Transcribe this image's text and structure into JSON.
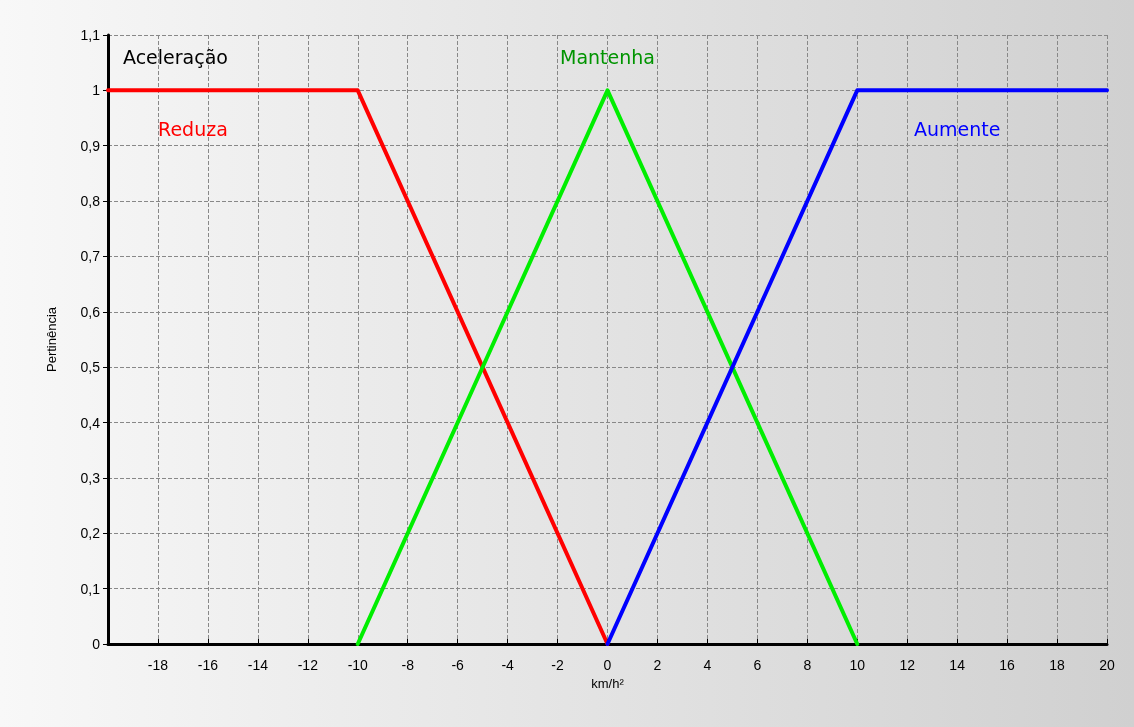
{
  "chart_data": {
    "type": "line",
    "title": "Aceleração",
    "xlabel": "km/h²",
    "ylabel": "Pertinência",
    "series": [
      {
        "name": "Reduza",
        "color": "#ff0000",
        "x": [
          -20,
          -10,
          0
        ],
        "values": [
          1,
          1,
          0
        ]
      },
      {
        "name": "Mantenha",
        "color": "#00ee00",
        "x": [
          -10,
          0,
          10
        ],
        "values": [
          0,
          1,
          0
        ]
      },
      {
        "name": "Aumente",
        "color": "#0000ff",
        "x": [
          0,
          10,
          20
        ],
        "values": [
          0,
          1,
          1
        ]
      }
    ],
    "xlim": [
      -20,
      20
    ],
    "xticks": [
      {
        "value": -20,
        "label": null
      },
      -18,
      -16,
      -14,
      -12,
      -10,
      -8,
      -6,
      -4,
      -2,
      0,
      2,
      4,
      6,
      8,
      10,
      12,
      14,
      16,
      18,
      20
    ],
    "ylim": [
      0,
      1.1
    ],
    "yticks": [
      0,
      {
        "value": 0.1,
        "label": "0,1"
      },
      {
        "value": 0.2,
        "label": "0,2"
      },
      {
        "value": 0.3,
        "label": "0,3"
      },
      {
        "value": 0.4,
        "label": "0,4"
      },
      {
        "value": 0.5,
        "label": "0,5"
      },
      {
        "value": 0.6,
        "label": "0,6"
      },
      {
        "value": 0.7,
        "label": "0,7"
      },
      {
        "value": 0.8,
        "label": "0,8"
      },
      {
        "value": 0.9,
        "label": "0,9"
      },
      1,
      {
        "value": 1.1,
        "label": "1,1"
      }
    ],
    "grid": true,
    "legend": false,
    "marker": "none",
    "line_style": "solid"
  }
}
